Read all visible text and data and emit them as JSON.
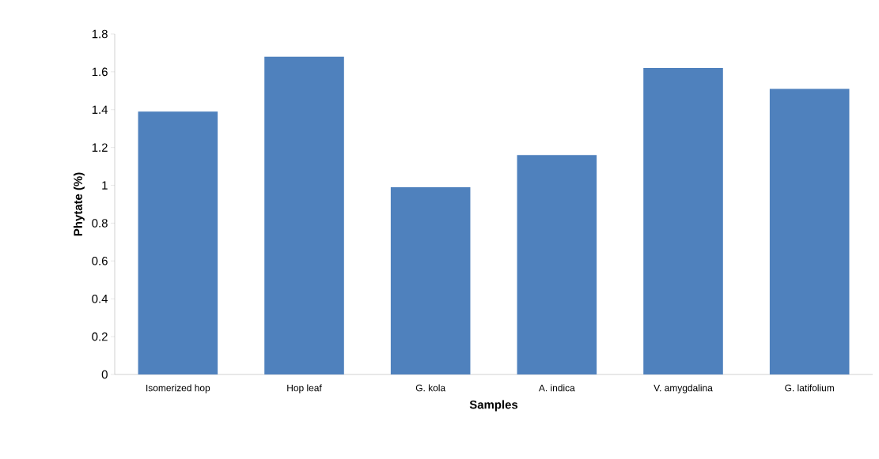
{
  "chart_data": {
    "type": "bar",
    "xlabel": "Samples",
    "ylabel": "Phytate (%)",
    "categories": [
      "Isomerized hop",
      "Hop leaf",
      "G. kola",
      "A. indica",
      "V. amygdalina",
      "G. latifolium"
    ],
    "values": [
      1.39,
      1.68,
      0.99,
      1.16,
      1.62,
      1.51
    ],
    "color": "#4f81bd",
    "ylim": [
      0,
      1.8
    ],
    "yticks": [
      0,
      0.2,
      0.4,
      0.6,
      0.8,
      1,
      1.2,
      1.4,
      1.6,
      1.8
    ]
  }
}
